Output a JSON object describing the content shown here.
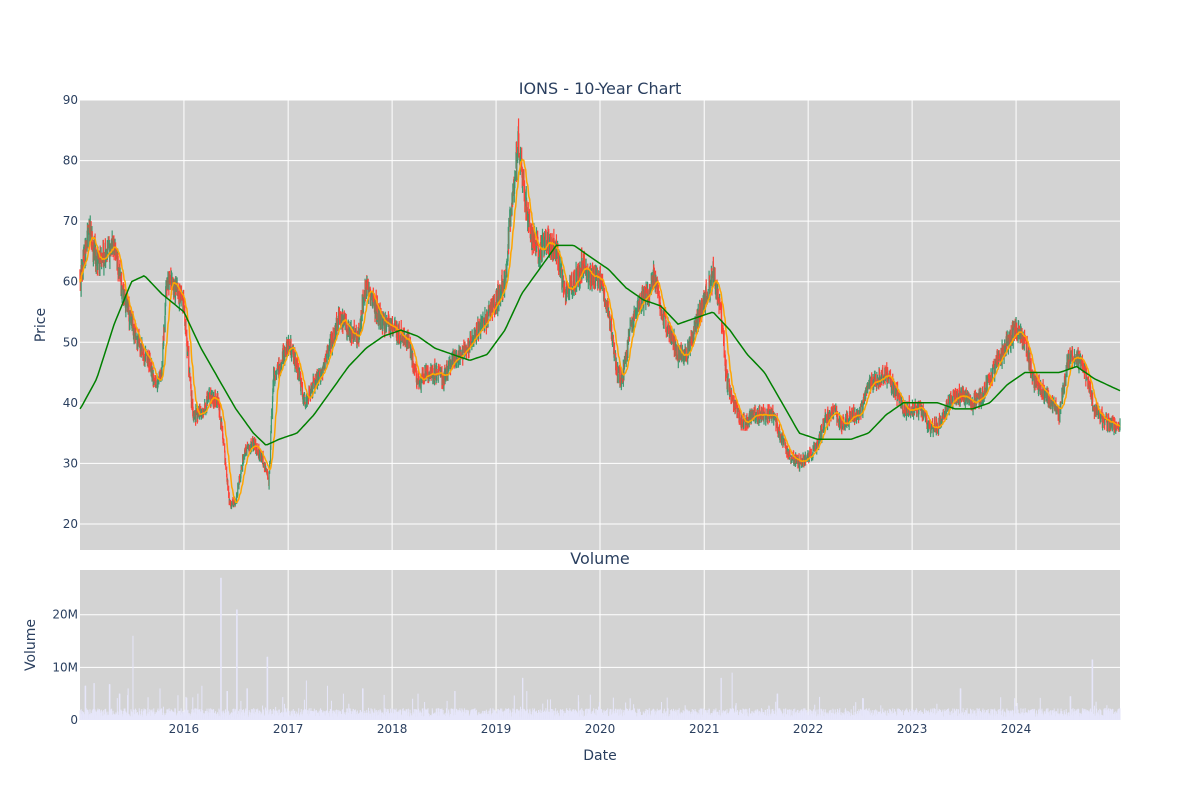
{
  "chart_data": [
    {
      "type": "candlestick",
      "title": "IONS - 10-Year Chart",
      "ylabel": "Price",
      "ylim": [
        15.7,
        90
      ],
      "y_ticks": [
        20,
        30,
        40,
        50,
        60,
        70,
        80,
        90
      ],
      "x_range": [
        "2015-01-01",
        "2024-12-31"
      ],
      "x_ticks": [
        "2016",
        "2017",
        "2018",
        "2019",
        "2020",
        "2021",
        "2022",
        "2023",
        "2024"
      ],
      "grid": true,
      "background": "#d3d3d3",
      "colors": {
        "up": "#3d9970",
        "down": "#ff4136",
        "ma_fast": "#ffa500",
        "ma_slow": "#008000"
      },
      "close_keypoints": [
        [
          "2015-01-02",
          60
        ],
        [
          "2015-02-01",
          69
        ],
        [
          "2015-03-01",
          63
        ],
        [
          "2015-04-01",
          65
        ],
        [
          "2015-05-01",
          66
        ],
        [
          "2015-06-01",
          58
        ],
        [
          "2015-07-01",
          53
        ],
        [
          "2015-08-01",
          49
        ],
        [
          "2015-09-01",
          47
        ],
        [
          "2015-09-20",
          43
        ],
        [
          "2015-10-15",
          45
        ],
        [
          "2015-11-01",
          60
        ],
        [
          "2015-12-01",
          59
        ],
        [
          "2016-01-01",
          56
        ],
        [
          "2016-02-01",
          38
        ],
        [
          "2016-03-01",
          38
        ],
        [
          "2016-04-01",
          41
        ],
        [
          "2016-05-01",
          40
        ],
        [
          "2016-05-20",
          33
        ],
        [
          "2016-06-10",
          23
        ],
        [
          "2016-07-01",
          24
        ],
        [
          "2016-08-01",
          32
        ],
        [
          "2016-09-01",
          33
        ],
        [
          "2016-10-01",
          31
        ],
        [
          "2016-10-25",
          27
        ],
        [
          "2016-11-10",
          44
        ],
        [
          "2016-12-10",
          47
        ],
        [
          "2017-01-05",
          50
        ],
        [
          "2017-02-01",
          46
        ],
        [
          "2017-03-01",
          40
        ],
        [
          "2017-04-01",
          43
        ],
        [
          "2017-05-01",
          45
        ],
        [
          "2017-06-01",
          50
        ],
        [
          "2017-07-01",
          54
        ],
        [
          "2017-08-01",
          52
        ],
        [
          "2017-09-01",
          50
        ],
        [
          "2017-10-01",
          60
        ],
        [
          "2017-11-01",
          56
        ],
        [
          "2017-12-01",
          53
        ],
        [
          "2018-01-01",
          53
        ],
        [
          "2018-02-01",
          51
        ],
        [
          "2018-03-01",
          50
        ],
        [
          "2018-04-01",
          43
        ],
        [
          "2018-05-01",
          45
        ],
        [
          "2018-06-01",
          45
        ],
        [
          "2018-07-01",
          44
        ],
        [
          "2018-08-01",
          47
        ],
        [
          "2018-09-01",
          48
        ],
        [
          "2018-10-01",
          50
        ],
        [
          "2018-11-01",
          52
        ],
        [
          "2018-12-01",
          54
        ],
        [
          "2019-01-01",
          57
        ],
        [
          "2019-02-01",
          60
        ],
        [
          "2019-02-20",
          70
        ],
        [
          "2019-03-20",
          83
        ],
        [
          "2019-04-10",
          75
        ],
        [
          "2019-05-01",
          68
        ],
        [
          "2019-06-01",
          65
        ],
        [
          "2019-07-01",
          67
        ],
        [
          "2019-08-01",
          65
        ],
        [
          "2019-09-01",
          58
        ],
        [
          "2019-10-01",
          60
        ],
        [
          "2019-11-01",
          63
        ],
        [
          "2019-12-01",
          61
        ],
        [
          "2020-01-01",
          60
        ],
        [
          "2020-02-01",
          55
        ],
        [
          "2020-03-01",
          45
        ],
        [
          "2020-03-20",
          44
        ],
        [
          "2020-04-15",
          52
        ],
        [
          "2020-05-15",
          56
        ],
        [
          "2020-06-15",
          58
        ],
        [
          "2020-07-10",
          61
        ],
        [
          "2020-08-01",
          55
        ],
        [
          "2020-09-01",
          52
        ],
        [
          "2020-10-01",
          48
        ],
        [
          "2020-11-01",
          48
        ],
        [
          "2020-12-01",
          53
        ],
        [
          "2021-01-01",
          57
        ],
        [
          "2021-02-01",
          61
        ],
        [
          "2021-03-01",
          55
        ],
        [
          "2021-03-20",
          44
        ],
        [
          "2021-04-15",
          40
        ],
        [
          "2021-05-10",
          37
        ],
        [
          "2021-06-01",
          37
        ],
        [
          "2021-07-01",
          38
        ],
        [
          "2021-08-01",
          38
        ],
        [
          "2021-09-01",
          38
        ],
        [
          "2021-10-01",
          34
        ],
        [
          "2021-11-01",
          31
        ],
        [
          "2021-12-01",
          30
        ],
        [
          "2022-01-01",
          31
        ],
        [
          "2022-02-01",
          33
        ],
        [
          "2022-03-01",
          37
        ],
        [
          "2022-04-01",
          39
        ],
        [
          "2022-05-01",
          36
        ],
        [
          "2022-06-01",
          38
        ],
        [
          "2022-07-01",
          38
        ],
        [
          "2022-08-01",
          43
        ],
        [
          "2022-09-01",
          44
        ],
        [
          "2022-10-01",
          45
        ],
        [
          "2022-11-01",
          42
        ],
        [
          "2022-12-01",
          39
        ],
        [
          "2023-01-01",
          39
        ],
        [
          "2023-02-01",
          39
        ],
        [
          "2023-03-01",
          36
        ],
        [
          "2023-04-01",
          36
        ],
        [
          "2023-05-01",
          39
        ],
        [
          "2023-06-01",
          41
        ],
        [
          "2023-07-01",
          41
        ],
        [
          "2023-08-01",
          40
        ],
        [
          "2023-09-01",
          41
        ],
        [
          "2023-10-01",
          44
        ],
        [
          "2023-11-01",
          47
        ],
        [
          "2023-12-01",
          50
        ],
        [
          "2024-01-01",
          52
        ],
        [
          "2024-02-01",
          50
        ],
        [
          "2024-03-01",
          44
        ],
        [
          "2024-04-01",
          42
        ],
        [
          "2024-05-01",
          40
        ],
        [
          "2024-06-01",
          38
        ],
        [
          "2024-07-01",
          47
        ],
        [
          "2024-08-01",
          48
        ],
        [
          "2024-09-01",
          45
        ],
        [
          "2024-10-01",
          39
        ],
        [
          "2024-11-01",
          37
        ],
        [
          "2024-12-31",
          36
        ]
      ],
      "ma_slow_keypoints": [
        [
          "2015-01-02",
          39
        ],
        [
          "2015-03-01",
          44
        ],
        [
          "2015-05-01",
          53
        ],
        [
          "2015-07-01",
          60
        ],
        [
          "2015-08-15",
          61
        ],
        [
          "2015-10-15",
          58
        ],
        [
          "2016-01-01",
          55
        ],
        [
          "2016-03-01",
          49
        ],
        [
          "2016-05-01",
          44
        ],
        [
          "2016-07-01",
          39
        ],
        [
          "2016-09-01",
          35
        ],
        [
          "2016-10-15",
          33
        ],
        [
          "2016-12-01",
          34
        ],
        [
          "2017-02-01",
          35
        ],
        [
          "2017-04-01",
          38
        ],
        [
          "2017-06-01",
          42
        ],
        [
          "2017-08-01",
          46
        ],
        [
          "2017-10-01",
          49
        ],
        [
          "2017-12-01",
          51
        ],
        [
          "2018-02-01",
          52
        ],
        [
          "2018-04-01",
          51
        ],
        [
          "2018-06-01",
          49
        ],
        [
          "2018-08-01",
          48
        ],
        [
          "2018-10-01",
          47
        ],
        [
          "2018-12-01",
          48
        ],
        [
          "2019-02-01",
          52
        ],
        [
          "2019-04-01",
          58
        ],
        [
          "2019-06-01",
          62
        ],
        [
          "2019-08-01",
          66
        ],
        [
          "2019-10-01",
          66
        ],
        [
          "2019-12-01",
          64
        ],
        [
          "2020-02-01",
          62
        ],
        [
          "2020-04-01",
          59
        ],
        [
          "2020-06-01",
          57
        ],
        [
          "2020-08-01",
          56
        ],
        [
          "2020-10-01",
          53
        ],
        [
          "2020-12-01",
          54
        ],
        [
          "2021-02-01",
          55
        ],
        [
          "2021-04-01",
          52
        ],
        [
          "2021-06-01",
          48
        ],
        [
          "2021-08-01",
          45
        ],
        [
          "2021-10-01",
          40
        ],
        [
          "2021-12-01",
          35
        ],
        [
          "2022-02-01",
          34
        ],
        [
          "2022-04-01",
          34
        ],
        [
          "2022-06-01",
          34
        ],
        [
          "2022-08-01",
          35
        ],
        [
          "2022-10-01",
          38
        ],
        [
          "2022-12-01",
          40
        ],
        [
          "2023-02-01",
          40
        ],
        [
          "2023-04-01",
          40
        ],
        [
          "2023-06-01",
          39
        ],
        [
          "2023-08-01",
          39
        ],
        [
          "2023-10-01",
          40
        ],
        [
          "2023-12-01",
          43
        ],
        [
          "2024-02-01",
          45
        ],
        [
          "2024-04-01",
          45
        ],
        [
          "2024-06-01",
          45
        ],
        [
          "2024-08-01",
          46
        ],
        [
          "2024-10-01",
          44
        ],
        [
          "2024-12-31",
          42
        ]
      ]
    },
    {
      "type": "bar",
      "title": "Volume",
      "ylabel": "Volume",
      "xlabel": "Date",
      "ylim": [
        0,
        28500000
      ],
      "y_ticks": [
        0,
        10000000,
        20000000
      ],
      "y_tick_labels": [
        "0",
        "10M",
        "20M"
      ],
      "x_ticks": [
        "2016",
        "2017",
        "2018",
        "2019",
        "2020",
        "2021",
        "2022",
        "2023",
        "2024"
      ],
      "grid": true,
      "background": "#d3d3d3",
      "bar_color": "#e6e6fa",
      "base_volume": 1500000,
      "spikes": [
        [
          "2015-01-20",
          6500000
        ],
        [
          "2015-02-20",
          7000000
        ],
        [
          "2015-04-15",
          6800000
        ],
        [
          "2015-05-20",
          5000000
        ],
        [
          "2015-06-20",
          6000000
        ],
        [
          "2015-07-05",
          16000000
        ],
        [
          "2015-10-10",
          6000000
        ],
        [
          "2016-02-20",
          5000000
        ],
        [
          "2016-03-05",
          6500000
        ],
        [
          "2016-05-10",
          27000000
        ],
        [
          "2016-06-01",
          5500000
        ],
        [
          "2016-07-05",
          21000000
        ],
        [
          "2016-08-10",
          6000000
        ],
        [
          "2016-10-20",
          12000000
        ],
        [
          "2017-03-05",
          7500000
        ],
        [
          "2017-05-20",
          6500000
        ],
        [
          "2017-07-15",
          5000000
        ],
        [
          "2017-09-20",
          6000000
        ],
        [
          "2018-04-01",
          5000000
        ],
        [
          "2018-08-10",
          5500000
        ],
        [
          "2019-04-05",
          8000000
        ],
        [
          "2019-04-20",
          5500000
        ],
        [
          "2021-03-01",
          8000000
        ],
        [
          "2021-04-10",
          9000000
        ],
        [
          "2021-09-15",
          5000000
        ],
        [
          "2023-06-20",
          6000000
        ],
        [
          "2024-07-10",
          4500000
        ],
        [
          "2024-09-25",
          11500000
        ]
      ]
    }
  ]
}
